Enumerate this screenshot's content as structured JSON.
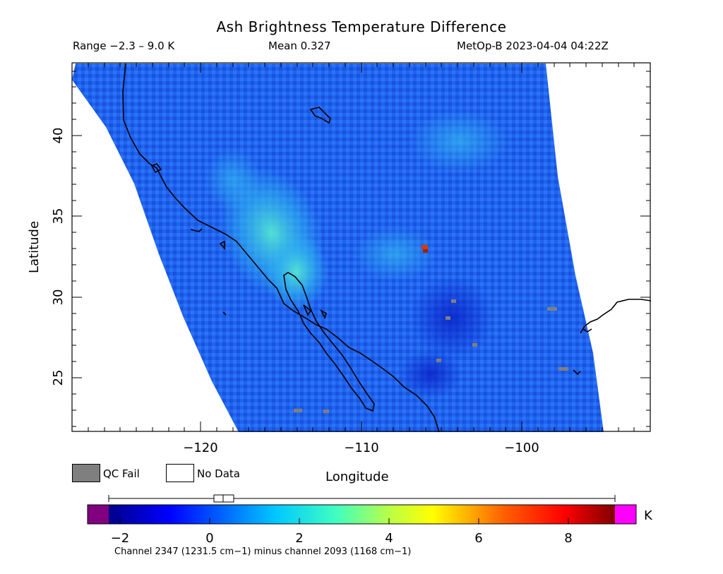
{
  "title": "Ash Brightness Temperature Difference",
  "stats": {
    "range": "Range −2.3 – 9.0 K",
    "mean": "Mean 0.327",
    "satellite": "MetOp-B 2023-04-04 04:22Z"
  },
  "axes": {
    "xlabel": "Longitude",
    "ylabel": "Latitude",
    "x_ticks": [
      "−120",
      "−110",
      "−100"
    ],
    "y_ticks": [
      "40",
      "35",
      "30",
      "25"
    ]
  },
  "legend": {
    "qc_fail": "QC Fail",
    "no_data": "No Data",
    "qc_color": "#7f7f7f"
  },
  "colorbar": {
    "unit": "K",
    "ticks": [
      "−2",
      "0",
      "2",
      "4",
      "6",
      "8"
    ],
    "caption": "Channel 2347 (1231.5 cm−1) minus channel 2093 (1168 cm−1)",
    "under_color": "#800080",
    "over_color": "#ff00ff"
  },
  "map": {
    "lon_range": [
      -127.7,
      -93.9
    ],
    "lat_range": [
      21.5,
      44.3
    ],
    "hotspot_lonlat": [
      -106.4,
      33.0
    ]
  }
}
